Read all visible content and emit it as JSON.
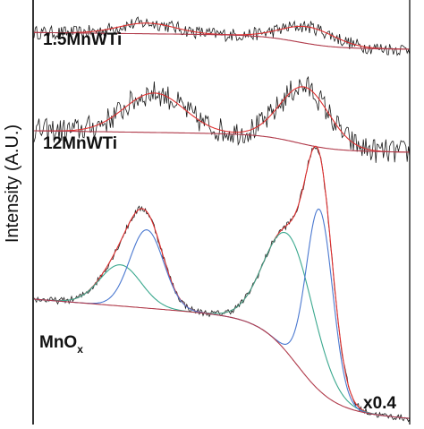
{
  "chart_data": {
    "type": "line",
    "title": "",
    "ylabel": "Intensity (A.U.)",
    "ylabel_visible": "Intensity (A.U.)",
    "xlabel": "",
    "grid": false,
    "colors": {
      "raw": "#1a1a1a",
      "fit_envelope": "#e03030",
      "background": "#b03a4a",
      "peak_high": "#4a78d0",
      "peak_low": "#3aa88e",
      "axis": "#000000"
    },
    "panels": [
      {
        "label_main": "1.5MnWTi",
        "label_sub": "",
        "label_suffix": "",
        "scale_note": "",
        "series": [
          {
            "role": "raw",
            "peaks": [
              {
                "c": 0.3,
                "h": 0.35,
                "w": 0.075
              },
              {
                "c": 0.73,
                "h": 0.55,
                "w": 0.07
              }
            ],
            "noise": 0.22,
            "bg_start": 0.05,
            "bg_end": -0.5
          },
          {
            "role": "fit_envelope",
            "peaks": [
              {
                "c": 0.3,
                "h": 0.35,
                "w": 0.075
              },
              {
                "c": 0.73,
                "h": 0.55,
                "w": 0.07
              }
            ],
            "bg_start": 0.05,
            "bg_end": -0.5
          },
          {
            "role": "background",
            "bg_start": 0.05,
            "bg_end": -0.5
          }
        ]
      },
      {
        "label_main": "12MnWTi",
        "label_sub": "",
        "label_suffix": "",
        "scale_note": "",
        "series": [
          {
            "role": "raw",
            "peaks": [
              {
                "c": 0.32,
                "h": 1.1,
                "w": 0.08
              },
              {
                "c": 0.72,
                "h": 1.6,
                "w": 0.065
              }
            ],
            "noise": 0.35,
            "bg_start": 0.1,
            "bg_end": -0.5
          },
          {
            "role": "fit_envelope",
            "peaks": [
              {
                "c": 0.32,
                "h": 1.1,
                "w": 0.08
              },
              {
                "c": 0.72,
                "h": 1.6,
                "w": 0.065
              }
            ],
            "bg_start": 0.1,
            "bg_end": -0.5
          },
          {
            "role": "background",
            "bg_start": 0.1,
            "bg_end": -0.5
          }
        ]
      },
      {
        "label_main": "MnO",
        "label_sub": "x",
        "label_suffix": "",
        "scale_note": "x0.4",
        "series": [
          {
            "role": "raw",
            "peaks": [
              {
                "c": 0.23,
                "h": 1.0,
                "w": 0.055
              },
              {
                "c": 0.3,
                "h": 1.9,
                "w": 0.045
              },
              {
                "c": 0.68,
                "h": 2.9,
                "w": 0.065
              },
              {
                "c": 0.76,
                "h": 4.4,
                "w": 0.035
              }
            ],
            "noise": 0.08,
            "bg_start": 1.0,
            "bg_end": -1.9
          },
          {
            "role": "fit_envelope",
            "peaks": [
              {
                "c": 0.23,
                "h": 1.0,
                "w": 0.055
              },
              {
                "c": 0.3,
                "h": 1.9,
                "w": 0.045
              },
              {
                "c": 0.68,
                "h": 2.9,
                "w": 0.065
              },
              {
                "c": 0.76,
                "h": 4.4,
                "w": 0.035
              }
            ],
            "bg_start": 1.0,
            "bg_end": -1.9
          },
          {
            "role": "peak_low",
            "peaks": [
              {
                "c": 0.23,
                "h": 1.0,
                "w": 0.055
              },
              {
                "c": 0.68,
                "h": 2.9,
                "w": 0.065
              }
            ],
            "bg_start": 1.0,
            "bg_end": -1.9
          },
          {
            "role": "peak_high",
            "peaks": [
              {
                "c": 0.3,
                "h": 1.9,
                "w": 0.045
              },
              {
                "c": 0.76,
                "h": 4.4,
                "w": 0.035
              }
            ],
            "bg_start": 1.0,
            "bg_end": -1.9
          },
          {
            "role": "background",
            "bg_start": 1.0,
            "bg_end": -1.9
          }
        ]
      }
    ]
  }
}
